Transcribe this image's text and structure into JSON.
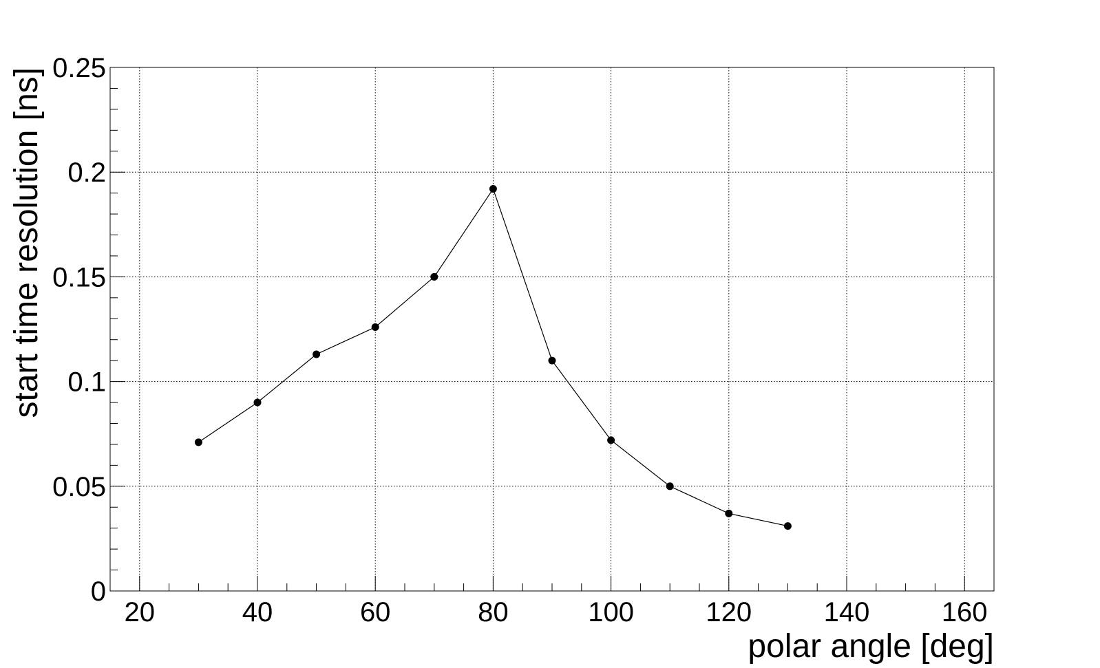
{
  "chart_data": {
    "type": "line",
    "title": "",
    "xlabel": "polar angle [deg]",
    "ylabel": "start time resolution [ns]",
    "xlim": [
      15,
      165
    ],
    "ylim": [
      0,
      0.25
    ],
    "x_ticks": [
      20,
      40,
      60,
      80,
      100,
      120,
      140,
      160
    ],
    "x_tick_labels": [
      "20",
      "40",
      "60",
      "80",
      "100",
      "120",
      "140",
      "160"
    ],
    "y_ticks": [
      0,
      0.05,
      0.1,
      0.15,
      0.2,
      0.25
    ],
    "y_tick_labels": [
      "0",
      "0.05",
      "0.1",
      "0.15",
      "0.2",
      "0.25"
    ],
    "x_minor_step": 5,
    "y_minor_step": 0.01,
    "grid": true,
    "legend": "none",
    "series": [
      {
        "x": [
          30,
          40,
          50,
          60,
          70,
          80,
          90,
          100,
          110,
          120,
          130
        ],
        "y": [
          0.071,
          0.09,
          0.113,
          0.126,
          0.15,
          0.192,
          0.11,
          0.072,
          0.05,
          0.037,
          0.031
        ],
        "color": "#000000",
        "marker": "circle"
      }
    ]
  }
}
